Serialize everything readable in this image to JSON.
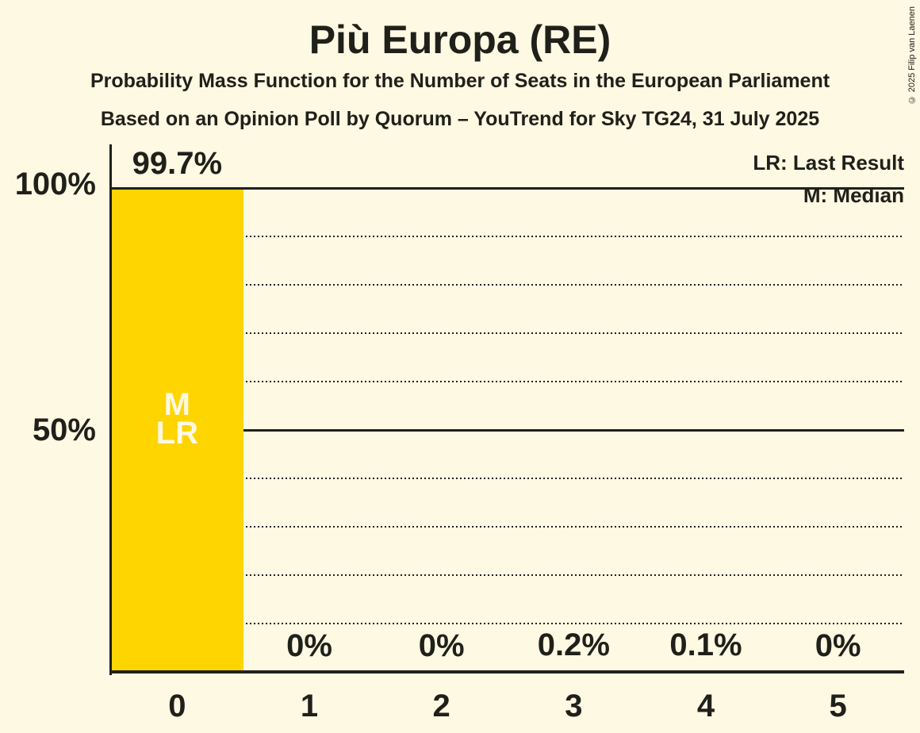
{
  "page": {
    "title": "Più Europa (RE)",
    "subtitle": "Probability Mass Function for the Number of Seats in the European Parliament",
    "source_line": "Based on an Opinion Poll by Quorum – YouTrend for Sky TG24, 31 July 2025",
    "copyright": "© 2025 Filip van Laenen"
  },
  "legend": {
    "last_result": "LR: Last Result",
    "median": "M: Median"
  },
  "y_axis": {
    "ticks": [
      {
        "label": "100%",
        "value": 100
      },
      {
        "label": "50%",
        "value": 50
      }
    ]
  },
  "chart_data": {
    "type": "bar",
    "title": "Più Europa (RE)",
    "xlabel": "",
    "ylabel": "",
    "categories": [
      "0",
      "1",
      "2",
      "3",
      "4",
      "5"
    ],
    "values": [
      99.7,
      0,
      0,
      0.2,
      0.1,
      0
    ],
    "value_labels": [
      "99.7%",
      "0%",
      "0%",
      "0.2%",
      "0.1%",
      "0%"
    ],
    "ylim": [
      0,
      100
    ],
    "ytick_values": [
      100,
      50
    ],
    "ytick_labels": [
      "100%",
      "50%"
    ],
    "solid_gridlines_percent": [
      100,
      50
    ],
    "dotted_gridlines_percent": [
      90,
      80,
      70,
      60,
      40,
      30,
      20,
      10
    ],
    "grid": "horizontal-only",
    "legend_position": "top-right",
    "legend_entries": [
      "LR: Last Result",
      "M: Median"
    ],
    "median_bar_category": "0",
    "last_result_bar_category": "0",
    "bar_annotations": [
      "M",
      "LR"
    ],
    "colors": {
      "background": "#FEF9E2",
      "bar": "#FFD500",
      "ink": "#20201B",
      "bar_annotation": "#FEF9E2"
    }
  }
}
